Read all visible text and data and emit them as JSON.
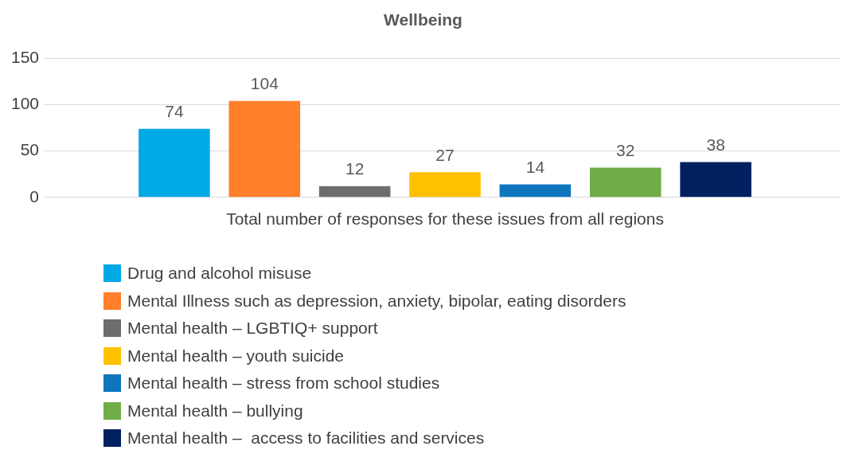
{
  "chart_data": {
    "type": "bar",
    "title": "Wellbeing",
    "categories": [
      "Total number of responses for these issues from all regions"
    ],
    "series": [
      {
        "name": "Drug and alcohol misuse",
        "color": "#00a9e6",
        "values": [
          74
        ]
      },
      {
        "name": "Mental Illness such as depression, anxiety, bipolar, eating disorders",
        "color": "#ff7f2a",
        "values": [
          104
        ]
      },
      {
        "name": "Mental health – LGBTIQ+ support",
        "color": "#6d6d6d",
        "values": [
          12
        ]
      },
      {
        "name": "Mental health – youth suicide",
        "color": "#ffc000",
        "values": [
          27
        ]
      },
      {
        "name": "Mental health – stress from school studies",
        "color": "#0f75bd",
        "values": [
          14
        ]
      },
      {
        "name": "Mental health – bullying",
        "color": "#70ad47",
        "values": [
          32
        ]
      },
      {
        "name": "Mental health –  access to facilities and services",
        "color": "#002060",
        "values": [
          38
        ]
      }
    ],
    "ylim": [
      0,
      150
    ],
    "yticks": [
      0,
      50,
      100,
      150
    ],
    "grid": "y",
    "data_labels": true,
    "legend": "bottom"
  }
}
